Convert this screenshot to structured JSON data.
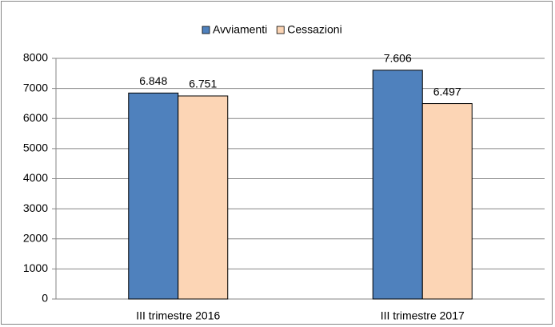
{
  "chart_data": {
    "type": "bar",
    "categories": [
      "III trimestre 2016",
      "III trimestre 2017"
    ],
    "series": [
      {
        "name": "Avviamenti",
        "color": "#4f81bd",
        "values": [
          6848,
          7606
        ],
        "value_labels": [
          "6.848",
          "7.606"
        ]
      },
      {
        "name": "Cessazioni",
        "color": "#fcd5b5",
        "values": [
          6751,
          6497
        ],
        "value_labels": [
          "6.751",
          "6.497"
        ]
      }
    ],
    "ylim": [
      0,
      8000
    ],
    "yticks": [
      0,
      1000,
      2000,
      3000,
      4000,
      5000,
      6000,
      7000,
      8000
    ],
    "grid": true,
    "legend": "top"
  }
}
